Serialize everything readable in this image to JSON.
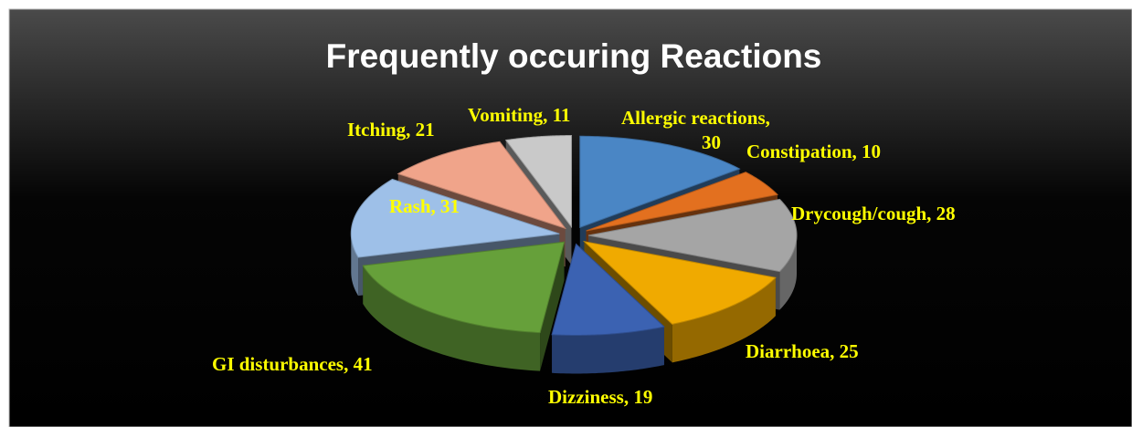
{
  "chart_data": {
    "type": "pie3d",
    "title": "Frequently occuring Reactions",
    "categories": [
      "Allergic reactions",
      "Constipation",
      "Drycough/cough",
      "Diarrhoea",
      "Dizziness",
      "GI disturbances",
      "Rash",
      "Itching",
      "Vomiting"
    ],
    "values": [
      30,
      10,
      28,
      25,
      19,
      41,
      31,
      21,
      11
    ],
    "value_labels": [
      "Allergic reactions, 30",
      "Constipation, 10",
      "Drycough/cough, 28",
      "Diarrhoea, 25",
      "Dizziness, 19",
      "GI disturbances, 41",
      "Rash, 31",
      "Itching, 21",
      "Vomiting, 11"
    ],
    "colors": [
      "#4a86c5",
      "#e3701f",
      "#a5a5a5",
      "#f0aa00",
      "#3b62b2",
      "#66a03a",
      "#9ec0e8",
      "#f0a48a",
      "#c9c9c9"
    ],
    "label_color": "#ffff00"
  }
}
